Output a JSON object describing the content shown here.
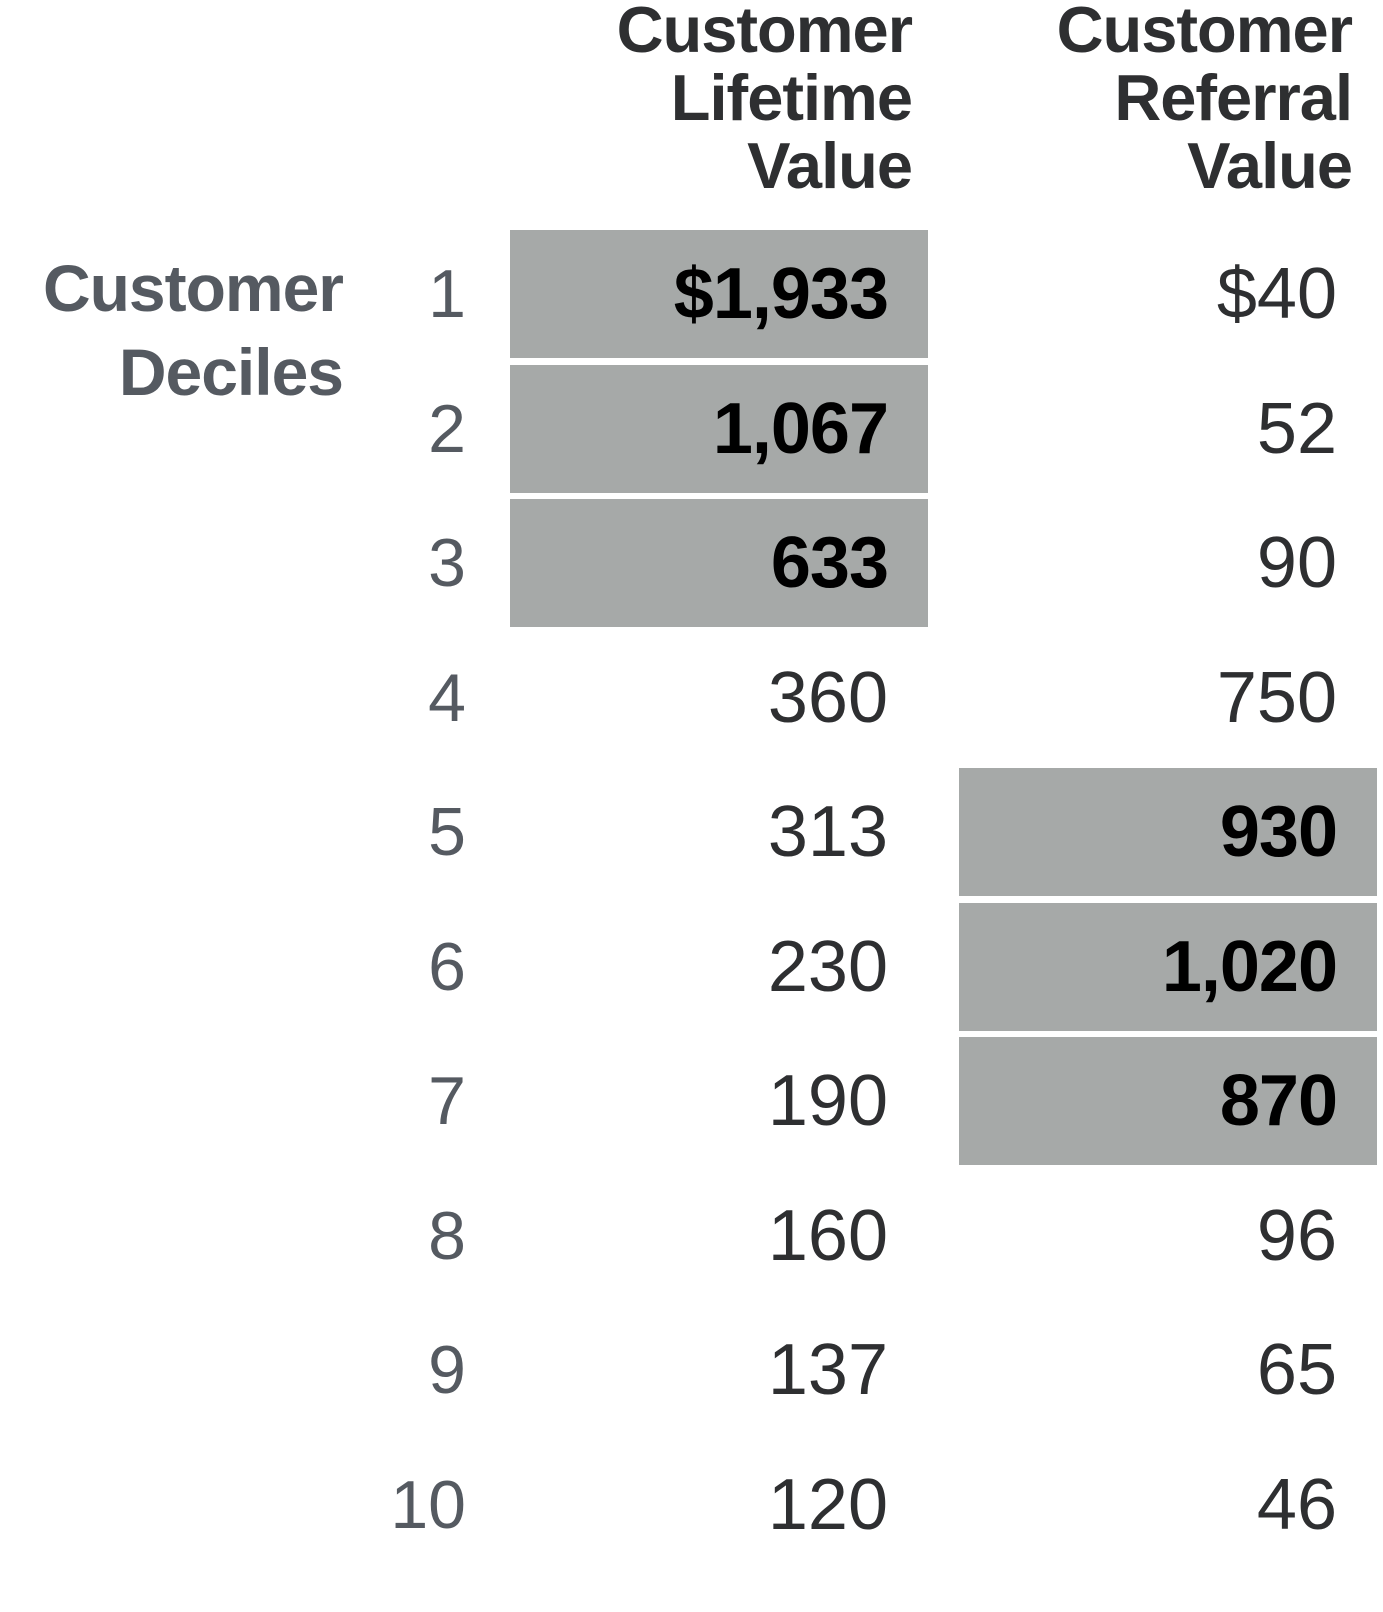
{
  "chart_data": {
    "type": "table",
    "columns": [
      {
        "name": "Customer Lifetime Value",
        "lines": [
          "Customer",
          "Lifetime",
          "Value"
        ]
      },
      {
        "name": "Customer Referral Value",
        "lines": [
          "Customer",
          "Referral",
          "Value"
        ]
      }
    ],
    "row_axis_label": [
      "Customer",
      "Deciles"
    ],
    "rows": [
      {
        "decile": "1",
        "clv": "$1,933",
        "crv": "$40",
        "clv_highlight": true,
        "crv_highlight": false
      },
      {
        "decile": "2",
        "clv": "1,067",
        "crv": "52",
        "clv_highlight": true,
        "crv_highlight": false
      },
      {
        "decile": "3",
        "clv": "633",
        "crv": "90",
        "clv_highlight": true,
        "crv_highlight": false
      },
      {
        "decile": "4",
        "clv": "360",
        "crv": "750",
        "clv_highlight": false,
        "crv_highlight": false
      },
      {
        "decile": "5",
        "clv": "313",
        "crv": "930",
        "clv_highlight": false,
        "crv_highlight": true
      },
      {
        "decile": "6",
        "clv": "230",
        "crv": "1,020",
        "clv_highlight": false,
        "crv_highlight": true
      },
      {
        "decile": "7",
        "clv": "190",
        "crv": "870",
        "clv_highlight": false,
        "crv_highlight": true
      },
      {
        "decile": "8",
        "clv": "160",
        "crv": "96",
        "clv_highlight": false,
        "crv_highlight": false
      },
      {
        "decile": "9",
        "clv": "137",
        "crv": "65",
        "clv_highlight": false,
        "crv_highlight": false
      },
      {
        "decile": "10",
        "clv": "120",
        "crv": "46",
        "clv_highlight": false,
        "crv_highlight": false
      }
    ],
    "colors": {
      "highlight_fill": "#a6a9a8",
      "header_text": "#2e2f31",
      "label_text": "#555a61",
      "highlight_text": "#000000"
    }
  }
}
